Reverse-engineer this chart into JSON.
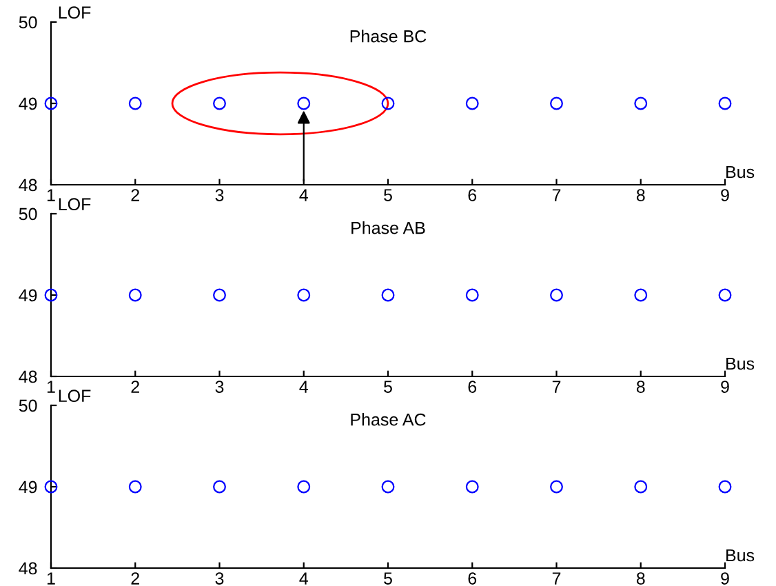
{
  "chart_data": [
    {
      "type": "scatter",
      "title": "Phase BC",
      "xlabel": "Bus",
      "ylabel": "LOF",
      "x": [
        1,
        2,
        3,
        4,
        5,
        6,
        7,
        8,
        9
      ],
      "series": [
        {
          "color": "#0000ff",
          "values": [
            49,
            49,
            49,
            49,
            49,
            49,
            49,
            49,
            49
          ]
        }
      ],
      "xlim": [
        1,
        9
      ],
      "xticks": [
        1,
        2,
        3,
        4,
        5,
        6,
        7,
        8,
        9
      ],
      "ylim": [
        48,
        50
      ],
      "yticks": [
        48,
        49,
        50
      ],
      "marker": "circle",
      "grid": false,
      "legend": false
    },
    {
      "type": "scatter",
      "title": "Phase AB",
      "xlabel": "Bus",
      "ylabel": "LOF",
      "x": [
        1,
        2,
        3,
        4,
        5,
        6,
        7,
        8,
        9
      ],
      "series": [
        {
          "color": "#0000ff",
          "values": [
            49,
            49,
            49,
            49,
            49,
            49,
            49,
            49,
            49
          ]
        }
      ],
      "xlim": [
        1,
        9
      ],
      "xticks": [
        1,
        2,
        3,
        4,
        5,
        6,
        7,
        8,
        9
      ],
      "ylim": [
        48,
        50
      ],
      "yticks": [
        48,
        49,
        50
      ],
      "marker": "circle",
      "grid": false,
      "legend": false
    },
    {
      "type": "scatter",
      "title": "Phase AC",
      "xlabel": "Bus",
      "ylabel": "LOF",
      "x": [
        1,
        2,
        3,
        4,
        5,
        6,
        7,
        8,
        9
      ],
      "series": [
        {
          "color": "#0000ff",
          "values": [
            49,
            49,
            49,
            49,
            49,
            49,
            49,
            49,
            49
          ]
        }
      ],
      "xlim": [
        1,
        9
      ],
      "xticks": [
        1,
        2,
        3,
        4,
        5,
        6,
        7,
        8,
        9
      ],
      "ylim": [
        48,
        50
      ],
      "yticks": [
        48,
        49,
        50
      ],
      "marker": "circle",
      "grid": false,
      "legend": false
    }
  ]
}
